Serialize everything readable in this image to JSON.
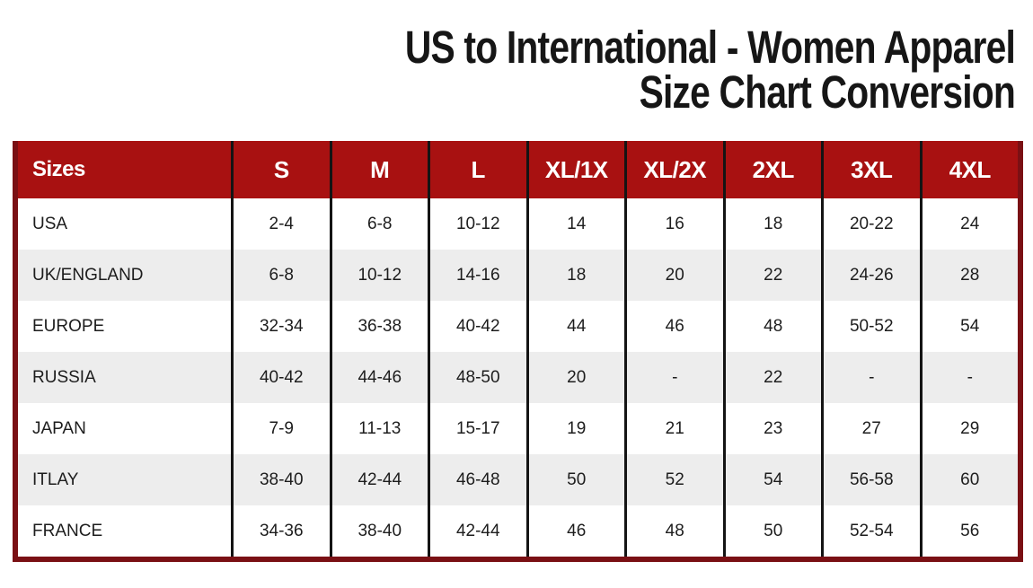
{
  "title": {
    "line1": "US to International - Women Apparel",
    "line2": "Size Chart Conversion"
  },
  "colors": {
    "header_bg": "#A81111",
    "outer_border": "#7A1014",
    "grid_line": "#141414",
    "row_bg": "#FFFFFF",
    "row_alt_bg": "#EDEDED",
    "header_text": "#FFFFFF",
    "body_text": "#1D1D1D"
  },
  "chart_data": {
    "type": "table",
    "title": "US to International - Women Apparel Size Chart Conversion",
    "columns": [
      "Sizes",
      "S",
      "M",
      "L",
      "XL/1X",
      "XL/2X",
      "2XL",
      "3XL",
      "4XL"
    ],
    "rows": [
      [
        "USA",
        "2-4",
        "6-8",
        "10-12",
        "14",
        "16",
        "18",
        "20-22",
        "24"
      ],
      [
        "UK/ENGLAND",
        "6-8",
        "10-12",
        "14-16",
        "18",
        "20",
        "22",
        "24-26",
        "28"
      ],
      [
        "EUROPE",
        "32-34",
        "36-38",
        "40-42",
        "44",
        "46",
        "48",
        "50-52",
        "54"
      ],
      [
        "RUSSIA",
        "40-42",
        "44-46",
        "48-50",
        "20",
        "-",
        "22",
        "-",
        "-"
      ],
      [
        "JAPAN",
        "7-9",
        "11-13",
        "15-17",
        "19",
        "21",
        "23",
        "27",
        "29"
      ],
      [
        "ITLAY",
        "38-40",
        "42-44",
        "46-48",
        "50",
        "52",
        "54",
        "56-58",
        "60"
      ],
      [
        "FRANCE",
        "34-36",
        "38-40",
        "42-44",
        "46",
        "48",
        "50",
        "52-54",
        "56"
      ]
    ],
    "layout": {
      "striped_rows": true,
      "header_fill": "#A81111",
      "first_column_align": "left",
      "value_align": "center"
    }
  }
}
